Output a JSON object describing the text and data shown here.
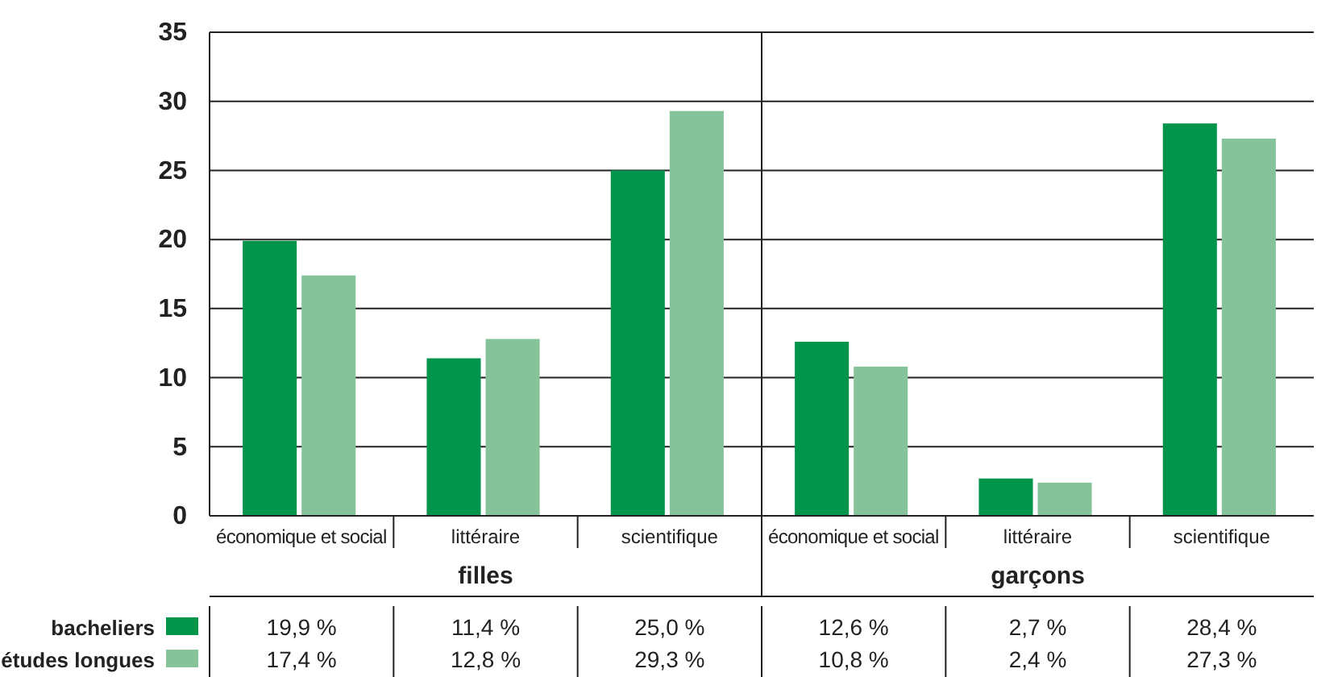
{
  "chart_data": {
    "type": "bar",
    "categories": [
      "économique et social",
      "littéraire",
      "scientifique",
      "économique et social",
      "littéraire",
      "scientifique"
    ],
    "series": [
      {
        "name": "bacheliers",
        "color": "#00954a",
        "values": [
          19.9,
          11.4,
          25.0,
          12.6,
          2.7,
          28.4
        ],
        "value_labels": [
          "19,9 %",
          "11,4 %",
          "25,0 %",
          "12,6 %",
          "2,7 %",
          "28,4 %"
        ]
      },
      {
        "name": "études longues",
        "color": "#86c29a",
        "values": [
          17.4,
          12.8,
          29.3,
          10.8,
          2.4,
          27.3
        ],
        "value_labels": [
          "17,4 %",
          "12,8 %",
          "29,3 %",
          "10,8 %",
          "2,4 %",
          "27,3 %"
        ]
      }
    ],
    "annotations": [
      "filles",
      "garçons"
    ],
    "ylim": [
      0,
      35
    ],
    "yticks": [
      0,
      5,
      10,
      15,
      20,
      25,
      30,
      35
    ],
    "grid": "y",
    "legend": "bottom left"
  }
}
